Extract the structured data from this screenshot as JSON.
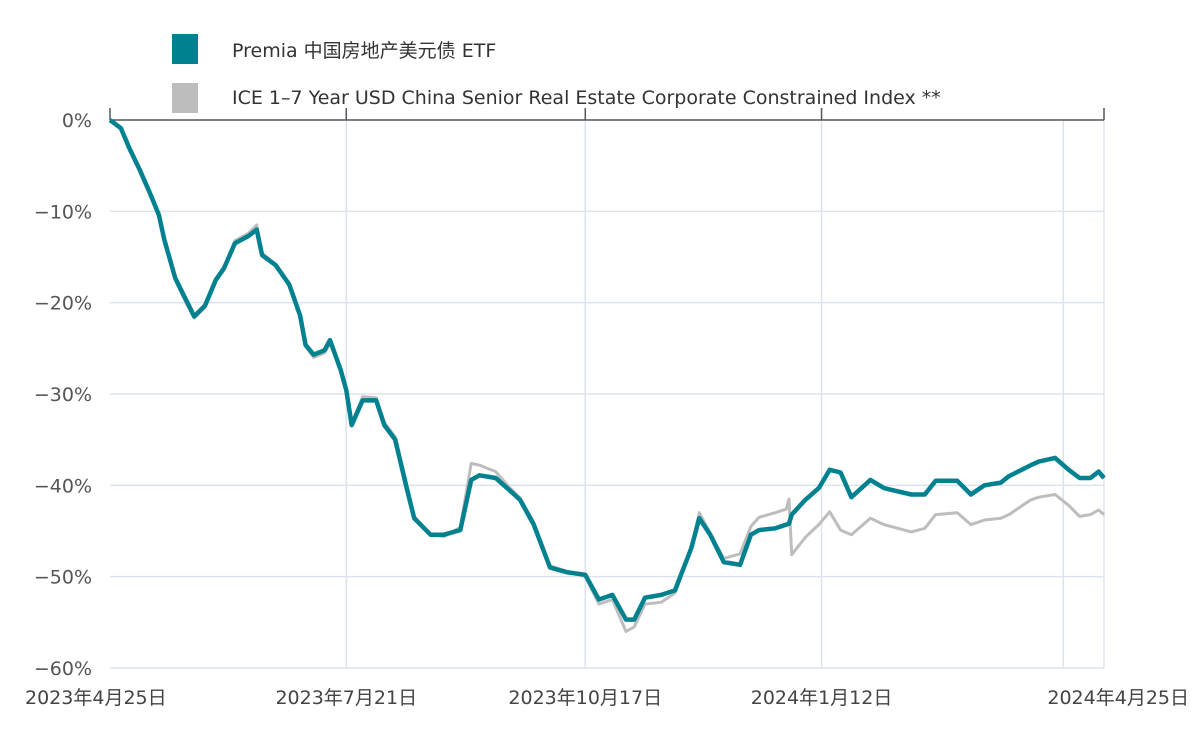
{
  "chart_data": {
    "type": "line",
    "title": "",
    "xlabel": "",
    "ylabel": "",
    "ylim": [
      -60,
      0
    ],
    "xlim": [
      "2023-04-25",
      "2024-04-25"
    ],
    "grid": true,
    "legend_position": "top-left",
    "y_ticks": [
      0,
      -10,
      -20,
      -30,
      -40,
      -50,
      -60
    ],
    "y_tick_labels": [
      "0%",
      "−10%",
      "−20%",
      "−30%",
      "−40%",
      "−50%",
      "−60%"
    ],
    "x_ticks": [
      "2023-04-25",
      "2023-07-21",
      "2023-10-17",
      "2024-01-12",
      "2024-04-25"
    ],
    "x_tick_labels": [
      "2023年4月25日",
      "2023年7月21日",
      "2023年10月17日",
      "2024年1月12日",
      "2024年4月25日"
    ],
    "x": [
      "2023-04-25",
      "2023-04-29",
      "2023-05-02",
      "2023-05-06",
      "2023-05-10",
      "2023-05-13",
      "2023-05-15",
      "2023-05-19",
      "2023-05-23",
      "2023-05-26",
      "2023-05-30",
      "2023-06-03",
      "2023-06-06",
      "2023-06-10",
      "2023-06-15",
      "2023-06-18",
      "2023-06-20",
      "2023-06-25",
      "2023-06-30",
      "2023-07-04",
      "2023-07-06",
      "2023-07-09",
      "2023-07-13",
      "2023-07-15",
      "2023-07-19",
      "2023-07-21",
      "2023-07-23",
      "2023-07-27",
      "2023-08-01",
      "2023-08-04",
      "2023-08-08",
      "2023-08-12",
      "2023-08-15",
      "2023-08-21",
      "2023-08-26",
      "2023-09-01",
      "2023-09-05",
      "2023-09-08",
      "2023-09-14",
      "2023-09-19",
      "2023-09-23",
      "2023-09-28",
      "2023-10-04",
      "2023-10-10",
      "2023-10-17",
      "2023-10-22",
      "2023-10-27",
      "2023-11-01",
      "2023-11-04",
      "2023-11-08",
      "2023-11-14",
      "2023-11-19",
      "2023-11-25",
      "2023-11-28",
      "2023-12-02",
      "2023-12-07",
      "2023-12-13",
      "2023-12-17",
      "2023-12-20",
      "2023-12-26",
      "2023-12-30",
      "2023-12-31",
      "2024-01-01",
      "2024-01-06",
      "2024-01-11",
      "2024-01-15",
      "2024-01-19",
      "2024-01-23",
      "2024-01-30",
      "2024-02-04",
      "2024-02-14",
      "2024-02-19",
      "2024-02-23",
      "2024-03-02",
      "2024-03-07",
      "2024-03-12",
      "2024-03-18",
      "2024-03-21",
      "2024-03-29",
      "2024-04-01",
      "2024-04-07",
      "2024-04-12",
      "2024-04-16",
      "2024-04-20",
      "2024-04-23",
      "2024-04-25"
    ],
    "series": [
      {
        "name": "Premia 中国房地产美元债 ETF",
        "color": "#00818f",
        "values": [
          0,
          -0.9,
          -3,
          -5.5,
          -8.2,
          -10.4,
          -13.1,
          -17.3,
          -19.7,
          -21.5,
          -20.3,
          -17.5,
          -16.2,
          -13.5,
          -12.7,
          -12,
          -14.8,
          -15.9,
          -18,
          -21.4,
          -24.6,
          -25.7,
          -25.2,
          -24.1,
          -27.4,
          -29.6,
          -33.4,
          -30.7,
          -30.7,
          -33.4,
          -35,
          -40,
          -43.6,
          -45.4,
          -45.4,
          -44.9,
          -39.4,
          -38.9,
          -39.2,
          -40.5,
          -41.6,
          -44.3,
          -49,
          -49.5,
          -49.8,
          -52.5,
          -52,
          -54.7,
          -54.7,
          -52.3,
          -52,
          -51.5,
          -46.9,
          -43.6,
          -45.4,
          -48.4,
          -48.7,
          -45.4,
          -44.9,
          -44.7,
          -44.3,
          -44.2,
          -43.2,
          -41.6,
          -40.3,
          -38.3,
          -38.6,
          -41.3,
          -39.4,
          -40.3,
          -41,
          -41,
          -39.5,
          -39.5,
          -41,
          -40,
          -39.7,
          -39,
          -37.8,
          -37.4,
          -37,
          -38.3,
          -39.2,
          -39.2,
          -38.5,
          -39.2
        ]
      },
      {
        "name": "ICE 1–7 Year USD China Senior Real Estate Corporate Constrained Index **",
        "color": "#bdbdbd",
        "values": [
          0,
          -0.9,
          -3.2,
          -5.7,
          -8.4,
          -10.6,
          -13.3,
          -17.5,
          -20,
          -21.7,
          -20.5,
          -17.6,
          -16.4,
          -13.2,
          -12.4,
          -11.5,
          -14.6,
          -15.8,
          -18.2,
          -21.6,
          -24.8,
          -26,
          -25.5,
          -24.4,
          -27.6,
          -29.8,
          -33.2,
          -30.3,
          -30.4,
          -33.1,
          -34.7,
          -39.5,
          -43.4,
          -45.4,
          -45.6,
          -44.6,
          -37.6,
          -37.8,
          -38.5,
          -40.2,
          -41.4,
          -44,
          -48.8,
          -49.4,
          -50,
          -53,
          -52.5,
          -56,
          -55.5,
          -53,
          -52.8,
          -51.8,
          -47,
          -43,
          -45.2,
          -48,
          -47.5,
          -44.5,
          -43.5,
          -43,
          -42.6,
          -41.5,
          -47.6,
          -45.7,
          -44.3,
          -42.9,
          -44.9,
          -45.4,
          -43.6,
          -44.3,
          -45.1,
          -44.7,
          -43.2,
          -43,
          -44.3,
          -43.8,
          -43.6,
          -43.2,
          -41.6,
          -41.3,
          -41,
          -42.2,
          -43.4,
          -43.2,
          -42.7,
          -43.2
        ]
      }
    ]
  },
  "legend": {
    "items": [
      {
        "label": "Premia 中国房地产美元债 ETF",
        "color": "#00818f"
      },
      {
        "label": "ICE 1–7 Year USD China Senior Real Estate Corporate Constrained Index **",
        "color": "#bdbdbd"
      }
    ]
  }
}
